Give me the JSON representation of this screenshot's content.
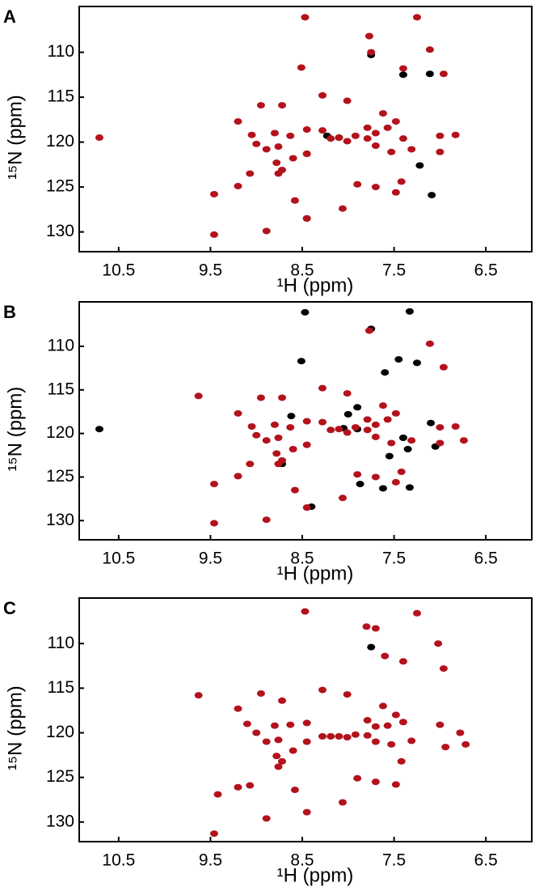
{
  "chart_data": [
    {
      "type": "scatter",
      "panel_label": "A",
      "xlabel": "¹H (ppm)",
      "ylabel": "¹⁵N (ppm)",
      "xlim": [
        10.93,
        6.0
      ],
      "ylim": [
        104.9,
        132.2
      ],
      "xticks": [
        10.5,
        9.5,
        8.5,
        7.5,
        6.5
      ],
      "yticks": [
        110,
        115,
        120,
        125,
        130
      ],
      "series": [
        {
          "color": "#000000",
          "x": [
            7.4,
            7.11,
            7.75,
            8.23,
            8.45,
            7.22,
            7.09,
            8.1,
            8.45
          ],
          "values": [
            112.5,
            112.4,
            110.3,
            119.3,
            128.5,
            122.6,
            125.9,
            119.5,
            121.3
          ]
        },
        {
          "color": "#b3121c",
          "x": [
            8.47,
            7.25,
            7.77,
            7.75,
            7.11,
            7.4,
            6.96,
            8.51,
            8.95,
            8.28,
            8.01,
            7.62,
            8.72,
            9.2,
            7.79,
            7.48,
            8.45,
            9.05,
            8.8,
            8.63,
            8.28,
            8.1,
            7.92,
            7.7,
            7.57,
            7.4,
            7.0,
            6.83,
            9.0,
            8.89,
            8.76,
            8.45,
            8.19,
            8.01,
            7.79,
            7.7,
            7.53,
            7.31,
            7.0,
            8.78,
            8.76,
            8.6,
            8.72,
            9.07,
            9.2,
            9.46,
            7.9,
            7.7,
            7.48,
            7.42,
            8.58,
            8.06,
            8.45,
            8.89,
            9.46,
            10.71
          ],
          "values": [
            106.1,
            106.1,
            108.2,
            110.0,
            109.7,
            111.8,
            112.4,
            111.7,
            115.9,
            114.8,
            115.4,
            116.8,
            115.9,
            117.7,
            118.4,
            117.7,
            118.6,
            119.2,
            119.0,
            119.3,
            118.7,
            119.5,
            119.3,
            119.0,
            118.4,
            119.6,
            119.3,
            119.2,
            120.2,
            120.8,
            120.5,
            121.3,
            119.6,
            119.9,
            119.6,
            120.4,
            121.1,
            120.8,
            121.1,
            122.3,
            123.5,
            121.8,
            123.1,
            123.5,
            124.9,
            125.8,
            124.7,
            125.0,
            125.6,
            124.4,
            126.5,
            127.4,
            128.5,
            129.9,
            130.3,
            119.5
          ]
        }
      ]
    },
    {
      "type": "scatter",
      "panel_label": "B",
      "xlabel": "¹H (ppm)",
      "ylabel": "¹⁵N (ppm)",
      "xlim": [
        10.93,
        6.0
      ],
      "ylim": [
        104.9,
        132.2
      ],
      "xticks": [
        10.5,
        9.5,
        8.5,
        7.5,
        6.5
      ],
      "yticks": [
        110,
        115,
        120,
        125,
        130
      ],
      "series": [
        {
          "color": "#000000",
          "x": [
            8.47,
            7.33,
            7.75,
            8.51,
            7.45,
            7.25,
            7.6,
            7.9,
            8.0,
            8.62,
            7.9,
            8.05,
            7.1,
            7.4,
            7.35,
            7.05,
            7.55,
            8.72,
            7.87,
            7.62,
            8.4,
            10.71,
            7.33
          ],
          "values": [
            106.1,
            106.0,
            108.0,
            111.7,
            111.5,
            111.9,
            113.0,
            117.0,
            117.8,
            118.0,
            119.5,
            119.4,
            118.8,
            120.5,
            121.8,
            121.5,
            122.6,
            123.5,
            125.8,
            126.3,
            128.4,
            119.5,
            126.2
          ]
        },
        {
          "color": "#b3121c",
          "x": [
            7.77,
            7.11,
            6.96,
            8.95,
            8.28,
            8.01,
            7.62,
            8.72,
            9.2,
            7.79,
            7.48,
            8.45,
            9.05,
            8.8,
            8.63,
            8.28,
            8.1,
            7.92,
            7.7,
            7.57,
            7.0,
            6.83,
            9.0,
            8.89,
            8.76,
            8.45,
            8.19,
            8.01,
            7.79,
            7.7,
            7.53,
            7.31,
            7.0,
            8.78,
            8.76,
            8.6,
            8.72,
            9.07,
            9.2,
            9.46,
            7.9,
            7.7,
            7.48,
            7.42,
            8.58,
            8.06,
            8.45,
            8.89,
            9.46,
            9.63,
            6.74
          ],
          "values": [
            108.2,
            109.7,
            112.4,
            115.9,
            114.8,
            115.4,
            116.8,
            115.9,
            117.7,
            118.4,
            117.7,
            118.6,
            119.2,
            119.0,
            119.3,
            118.7,
            119.5,
            119.3,
            119.0,
            118.4,
            119.3,
            119.2,
            120.2,
            120.8,
            120.5,
            121.3,
            119.6,
            119.9,
            119.6,
            120.4,
            121.1,
            120.8,
            121.1,
            122.3,
            123.5,
            121.8,
            123.1,
            123.5,
            124.9,
            125.8,
            124.7,
            125.0,
            125.6,
            124.4,
            126.5,
            127.4,
            128.5,
            129.9,
            130.3,
            115.7,
            120.8
          ]
        }
      ]
    },
    {
      "type": "scatter",
      "panel_label": "C",
      "xlabel": "¹H (ppm)",
      "ylabel": "¹⁵N (ppm)",
      "xlim": [
        10.93,
        6.0
      ],
      "ylim": [
        104.9,
        132.2
      ],
      "xticks": [
        10.5,
        9.5,
        8.5,
        7.5,
        6.5
      ],
      "yticks": [
        110,
        115,
        120,
        125,
        130
      ],
      "series": [
        {
          "color": "#000000",
          "x": [
            7.75
          ],
          "values": [
            110.4
          ]
        },
        {
          "color": "#b3121c",
          "x": [
            8.47,
            7.25,
            7.7,
            7.8,
            7.02,
            7.4,
            6.96,
            7.6,
            8.95,
            8.28,
            8.01,
            7.62,
            8.72,
            9.2,
            7.79,
            7.48,
            8.45,
            9.1,
            8.8,
            8.63,
            8.28,
            8.1,
            7.92,
            7.7,
            7.57,
            7.4,
            7.0,
            6.78,
            9.0,
            8.89,
            8.76,
            8.45,
            8.19,
            8.01,
            7.79,
            7.7,
            7.53,
            7.31,
            6.94,
            8.78,
            8.76,
            8.6,
            8.72,
            9.07,
            9.2,
            9.42,
            7.9,
            7.7,
            7.48,
            7.42,
            8.58,
            8.06,
            8.45,
            8.89,
            9.46,
            9.63,
            6.72
          ],
          "values": [
            106.4,
            106.6,
            108.3,
            108.1,
            110.0,
            112.0,
            112.8,
            111.4,
            115.6,
            115.2,
            115.7,
            117.0,
            116.4,
            117.3,
            118.6,
            118.0,
            118.9,
            119.0,
            119.2,
            119.1,
            120.4,
            120.4,
            120.2,
            119.3,
            119.2,
            118.8,
            119.1,
            120.0,
            120.0,
            121.0,
            120.8,
            121.0,
            120.4,
            120.5,
            120.3,
            121.0,
            121.3,
            120.9,
            121.6,
            122.6,
            123.8,
            122.0,
            123.2,
            125.9,
            126.1,
            126.9,
            125.1,
            125.5,
            125.8,
            123.2,
            126.4,
            127.8,
            128.9,
            129.6,
            131.3,
            115.8,
            121.3
          ]
        }
      ]
    }
  ]
}
